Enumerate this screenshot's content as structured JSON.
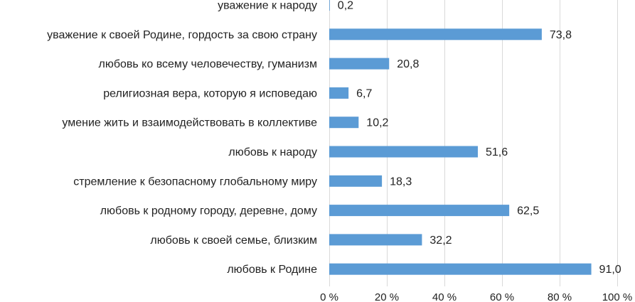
{
  "chart_data": {
    "type": "bar",
    "orientation": "horizontal",
    "categories": [
      "уважение к народу",
      "уважение к своей Родине, гордость за свою страну",
      "любовь ко всему человечеству, гуманизм",
      "религиозная вера, которую я исповедаю",
      "умение жить и взаимодействовать в коллективе",
      "любовь к народу",
      "стремление к безопасному глобальному миру",
      "любовь к родному городу, деревне, дому",
      "любовь к своей семье, близким",
      "любовь к Родине"
    ],
    "values": [
      0.2,
      73.8,
      20.8,
      6.7,
      10.2,
      51.6,
      18.3,
      62.5,
      32.2,
      91.0
    ],
    "value_labels": [
      "0,2",
      "73,8",
      "20,8",
      "6,7",
      "10,2",
      "51,6",
      "18,3",
      "62,5",
      "32,2",
      "91,0"
    ],
    "xlim": [
      0,
      100
    ],
    "x_ticks": [
      0,
      20,
      40,
      60,
      80,
      100
    ],
    "x_tick_labels": [
      "0 %",
      "20 %",
      "40 %",
      "60 %",
      "80 %",
      "100 %"
    ],
    "grid": "vertical",
    "legend": "none",
    "bar_color": "#5b9bd5"
  }
}
